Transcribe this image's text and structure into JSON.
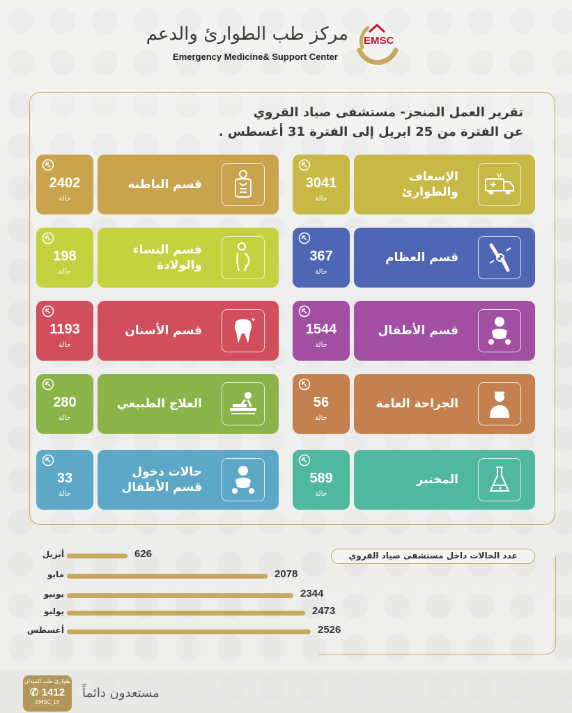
{
  "header": {
    "arabic_name": "مركز طب الطوارئ والدعم",
    "english_name": "Emergency Medicine& Support Center",
    "logo_text": "EMSC"
  },
  "report": {
    "title_line1": "تقرير العمل المنجز- مستشفى صياد القروي",
    "title_line2": "عن الفترة من 25 ابريل إلى الفترة 31 أغسطس ."
  },
  "colors": {
    "gold": "#c6a95e",
    "mustard": "#c9a44c",
    "yellow_olive": "#c8b845",
    "lime": "#c3d33f",
    "indigo": "#4e66b3",
    "rose": "#d14e5c",
    "purple": "#a24ea3",
    "green": "#8ab449",
    "brown": "#c4804e",
    "steel_blue": "#5ca8c6",
    "teal": "#4fb89f"
  },
  "unit_label": "حالة",
  "cards": [
    {
      "id": "emergency",
      "label": "الإسعاف والطوارئ",
      "count": "3041",
      "icon": "ambulance-icon",
      "color": "#c8b845"
    },
    {
      "id": "internal",
      "label": "قسم الباطنة",
      "count": "2402",
      "icon": "internal-organs-icon",
      "color": "#c9a44c"
    },
    {
      "id": "orthopedics",
      "label": "قسم العظام",
      "count": "367",
      "icon": "knee-bone-icon",
      "color": "#4e66b3"
    },
    {
      "id": "obgyn",
      "label": "قسم النساء والولادة",
      "count": "198",
      "icon": "pregnant-woman-icon",
      "color": "#c3d33f"
    },
    {
      "id": "pediatrics",
      "label": "قسم الأطفال",
      "count": "1544",
      "icon": "baby-icon",
      "color": "#a24ea3"
    },
    {
      "id": "dental",
      "label": "قسم الأسنان",
      "count": "1193",
      "icon": "tooth-icon",
      "color": "#d14e5c"
    },
    {
      "id": "surgery",
      "label": "الجراحة العامة",
      "count": "56",
      "icon": "doctor-icon",
      "color": "#c4804e"
    },
    {
      "id": "physio",
      "label": "العلاج الطبيعي",
      "count": "280",
      "icon": "physiotherapy-icon",
      "color": "#8ab449"
    },
    {
      "id": "lab",
      "label": "المختبر",
      "count": "589",
      "icon": "flask-icon",
      "color": "#4fb89f"
    },
    {
      "id": "pediatric_admissions",
      "label": "حالات دخول قسم الأطفال",
      "count": "33",
      "icon": "baby-icon",
      "color": "#5ca8c6"
    }
  ],
  "chart_data": {
    "type": "bar",
    "title": "عدد الحالات داخل مستشفى صياد القروي",
    "categories": [
      "أبريل",
      "مايو",
      "يونيو",
      "يوليو",
      "أغسطس"
    ],
    "values": [
      626,
      2078,
      2344,
      2473,
      2526
    ],
    "xlim": [
      0,
      2600
    ]
  },
  "footer": {
    "slogan": "مستعدون دائماً",
    "hotline_label": "طوارئ طب الميدان",
    "hotline_number": "1412",
    "handle": "EMSC_LY"
  }
}
